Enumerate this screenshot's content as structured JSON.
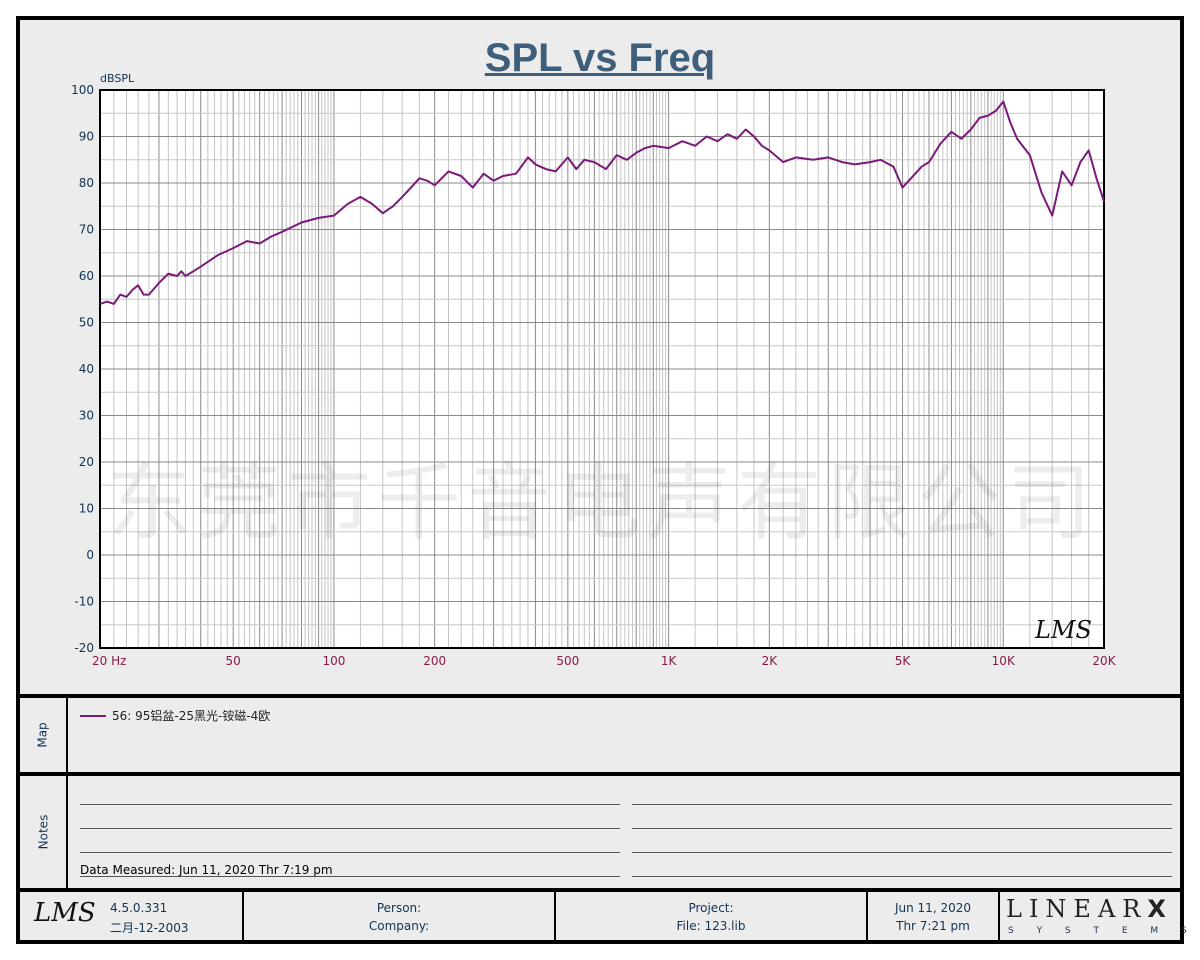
{
  "chart_data": {
    "type": "line",
    "title": "SPL vs Freq",
    "ylabel": "dBSPL",
    "xlabel": "",
    "x_scale": "log",
    "xlim": [
      20,
      20000
    ],
    "ylim": [
      -20,
      100
    ],
    "grid": true,
    "y_ticks": [
      100,
      90,
      80,
      70,
      60,
      50,
      40,
      30,
      20,
      10,
      0,
      -10,
      -20
    ],
    "x_tick_labels": [
      {
        "x": 20,
        "label": "20  Hz"
      },
      {
        "x": 50,
        "label": "50"
      },
      {
        "x": 100,
        "label": "100"
      },
      {
        "x": 200,
        "label": "200"
      },
      {
        "x": 500,
        "label": "500"
      },
      {
        "x": 1000,
        "label": "1K"
      },
      {
        "x": 2000,
        "label": "2K"
      },
      {
        "x": 5000,
        "label": "5K"
      },
      {
        "x": 10000,
        "label": "10K"
      },
      {
        "x": 20000,
        "label": "20K"
      }
    ],
    "series": [
      {
        "name": "56: 95铝盆-25黑光-铵磁-4欧",
        "color": "#7a1a7a",
        "x": [
          20,
          21,
          22,
          23,
          24,
          25,
          26,
          27,
          28,
          30,
          32,
          34,
          35,
          36,
          38,
          40,
          45,
          50,
          55,
          60,
          65,
          70,
          80,
          90,
          100,
          110,
          120,
          130,
          140,
          150,
          160,
          170,
          180,
          190,
          200,
          220,
          240,
          260,
          280,
          300,
          320,
          350,
          380,
          400,
          430,
          460,
          500,
          530,
          560,
          600,
          650,
          700,
          750,
          800,
          850,
          900,
          1000,
          1100,
          1200,
          1300,
          1400,
          1500,
          1600,
          1700,
          1800,
          1900,
          2000,
          2200,
          2400,
          2700,
          3000,
          3300,
          3600,
          4000,
          4300,
          4700,
          5000,
          5300,
          5700,
          6000,
          6500,
          7000,
          7500,
          8000,
          8500,
          9000,
          9500,
          10000,
          10500,
          11000,
          12000,
          13000,
          14000,
          15000,
          16000,
          17000,
          18000,
          19000,
          20000
        ],
        "y": [
          54,
          54.5,
          54,
          56,
          55.5,
          57,
          58,
          56,
          56,
          58.5,
          60.5,
          60,
          61,
          60,
          61,
          62,
          64.5,
          66,
          67.5,
          67,
          68.5,
          69.5,
          71.5,
          72.5,
          73,
          75.5,
          77,
          75.5,
          73.5,
          75,
          77,
          79,
          81,
          80.5,
          79.5,
          82.5,
          81.5,
          79,
          82,
          80.5,
          81.5,
          82,
          85.5,
          84,
          83,
          82.5,
          85.5,
          83,
          85,
          84.5,
          83,
          86,
          85,
          86.5,
          87.5,
          88,
          87.5,
          89,
          88,
          90,
          89,
          90.5,
          89.5,
          91.5,
          90,
          88,
          87,
          84.5,
          85.5,
          85,
          85.5,
          84.5,
          84,
          84.5,
          85,
          83.5,
          79,
          81,
          83.5,
          84.5,
          88.5,
          91,
          89.5,
          91.5,
          94,
          94.5,
          95.5,
          97.5,
          93,
          89.5,
          86,
          78,
          73,
          82.5,
          79.5,
          84.5,
          87,
          81,
          76
        ]
      }
    ]
  },
  "watermark": "东莞市千音电声有限公司",
  "plot_logo": "LMS",
  "map": {
    "label": "Map",
    "legend_entry": "56: 95铝盆-25黑光-铵磁-4欧"
  },
  "notes": {
    "label": "Notes",
    "data_measured": "Data Measured: Jun 11, 2020  Thr  7:19 pm"
  },
  "footer": {
    "logo": "LMS",
    "version": "4.5.0.331",
    "version_date": "二月-12-2003",
    "person_label": "Person:",
    "company_label": "Company:",
    "project_label": "Project:",
    "file_label": "File: 123.lib",
    "date": "Jun 11, 2020",
    "time": "Thr  7:21 pm",
    "brand_main": "LINEAR",
    "brand_x": "X",
    "brand_sub": "S  Y  S  T  E  M  S"
  },
  "colors": {
    "title": "#3e5e7a",
    "axis_labels": "#8a1a4a",
    "y_tick_labels": "#113355",
    "trace": "#7a1a7a",
    "grid": "#9a9a9a",
    "panel_bg": "#ececec"
  }
}
